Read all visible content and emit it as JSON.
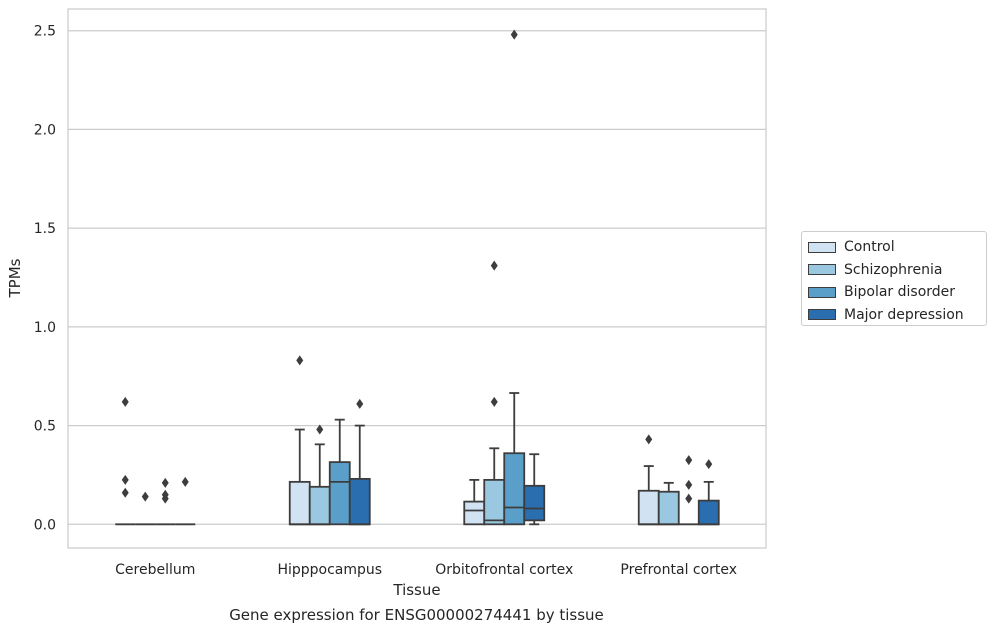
{
  "chart_data": {
    "type": "box",
    "title": "",
    "xlabel": "Tissue",
    "ylabel": "TPMs",
    "ylim": [
      -0.12,
      2.61
    ],
    "yticks": [
      0.0,
      0.5,
      1.0,
      1.5,
      2.0,
      2.5
    ],
    "ytick_labels": [
      "0.0",
      "0.5",
      "1.0",
      "1.5",
      "2.0",
      "2.5"
    ],
    "grid": true,
    "legend_position": "right",
    "categories": [
      "Cerebellum",
      "Hipppocampus",
      "Orbitofrontal cortex",
      "Prefrontal cortex"
    ],
    "series": [
      {
        "name": "Control",
        "color": "#d1e2f2",
        "boxes": [
          {
            "q1": 0.0,
            "median": 0.0,
            "q3": 0.0,
            "whisker_low": 0.0,
            "whisker_high": 0.0,
            "outliers": [
              0.62,
              0.225,
              0.16
            ]
          },
          {
            "q1": 0.0,
            "median": 0.0,
            "q3": 0.215,
            "whisker_low": 0.0,
            "whisker_high": 0.48,
            "outliers": [
              0.83
            ]
          },
          {
            "q1": 0.0,
            "median": 0.07,
            "q3": 0.115,
            "whisker_low": 0.0,
            "whisker_high": 0.225,
            "outliers": []
          },
          {
            "q1": 0.0,
            "median": 0.0,
            "q3": 0.17,
            "whisker_low": 0.0,
            "whisker_high": 0.295,
            "outliers": [
              0.43
            ]
          }
        ]
      },
      {
        "name": "Schizophrenia",
        "color": "#9ac8e0",
        "boxes": [
          {
            "q1": 0.0,
            "median": 0.0,
            "q3": 0.0,
            "whisker_low": 0.0,
            "whisker_high": 0.0,
            "outliers": [
              0.14
            ]
          },
          {
            "q1": 0.0,
            "median": 0.0,
            "q3": 0.19,
            "whisker_low": 0.0,
            "whisker_high": 0.405,
            "outliers": [
              0.48
            ]
          },
          {
            "q1": 0.0,
            "median": 0.02,
            "q3": 0.225,
            "whisker_low": 0.0,
            "whisker_high": 0.385,
            "outliers": [
              1.31,
              0.62
            ]
          },
          {
            "q1": 0.0,
            "median": 0.0,
            "q3": 0.165,
            "whisker_low": 0.0,
            "whisker_high": 0.21,
            "outliers": []
          }
        ]
      },
      {
        "name": "Bipolar disorder",
        "color": "#5a9fc9",
        "boxes": [
          {
            "q1": 0.0,
            "median": 0.0,
            "q3": 0.0,
            "whisker_low": 0.0,
            "whisker_high": 0.0,
            "outliers": [
              0.21,
              0.15,
              0.13
            ]
          },
          {
            "q1": 0.0,
            "median": 0.215,
            "q3": 0.315,
            "whisker_low": 0.0,
            "whisker_high": 0.53,
            "outliers": []
          },
          {
            "q1": 0.0,
            "median": 0.085,
            "q3": 0.36,
            "whisker_low": 0.0,
            "whisker_high": 0.665,
            "outliers": [
              2.48
            ]
          },
          {
            "q1": 0.0,
            "median": 0.0,
            "q3": 0.0,
            "whisker_low": 0.0,
            "whisker_high": 0.0,
            "outliers": [
              0.325,
              0.2,
              0.13
            ]
          }
        ]
      },
      {
        "name": "Major depression",
        "color": "#2a6eb0",
        "boxes": [
          {
            "q1": 0.0,
            "median": 0.0,
            "q3": 0.0,
            "whisker_low": 0.0,
            "whisker_high": 0.0,
            "outliers": [
              0.215
            ]
          },
          {
            "q1": 0.0,
            "median": 0.0,
            "q3": 0.23,
            "whisker_low": 0.0,
            "whisker_high": 0.5,
            "outliers": [
              0.61
            ]
          },
          {
            "q1": 0.02,
            "median": 0.08,
            "q3": 0.195,
            "whisker_low": 0.0,
            "whisker_high": 0.355,
            "outliers": []
          },
          {
            "q1": 0.0,
            "median": 0.0,
            "q3": 0.12,
            "whisker_low": 0.0,
            "whisker_high": 0.215,
            "outliers": [
              0.305
            ]
          }
        ]
      }
    ]
  },
  "caption": "Gene expression for ENSG00000274441 by tissue"
}
